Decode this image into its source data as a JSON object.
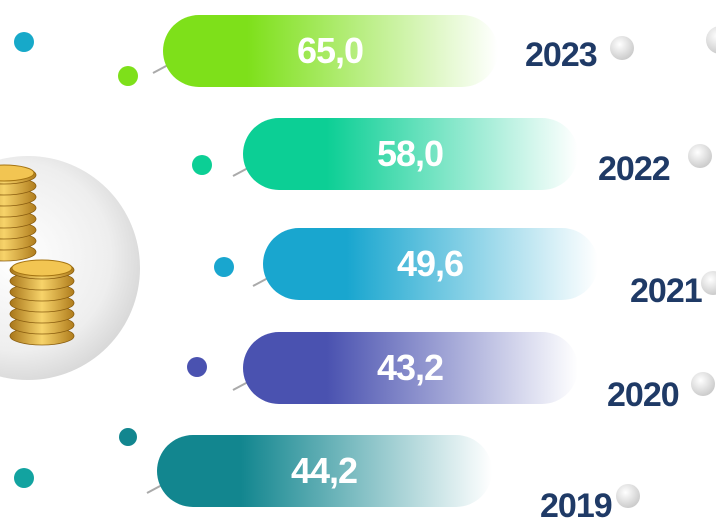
{
  "items": [
    {
      "year": "2023",
      "value": "65,0",
      "color": "#7ee01a"
    },
    {
      "year": "2022",
      "value": "58,0",
      "color": "#0ccf95"
    },
    {
      "year": "2021",
      "value": "49,6",
      "color": "#19a6cf"
    },
    {
      "year": "2020",
      "value": "43,2",
      "color": "#4a52b0"
    },
    {
      "year": "2019",
      "value": "44,2",
      "color": "#12868f"
    }
  ]
}
